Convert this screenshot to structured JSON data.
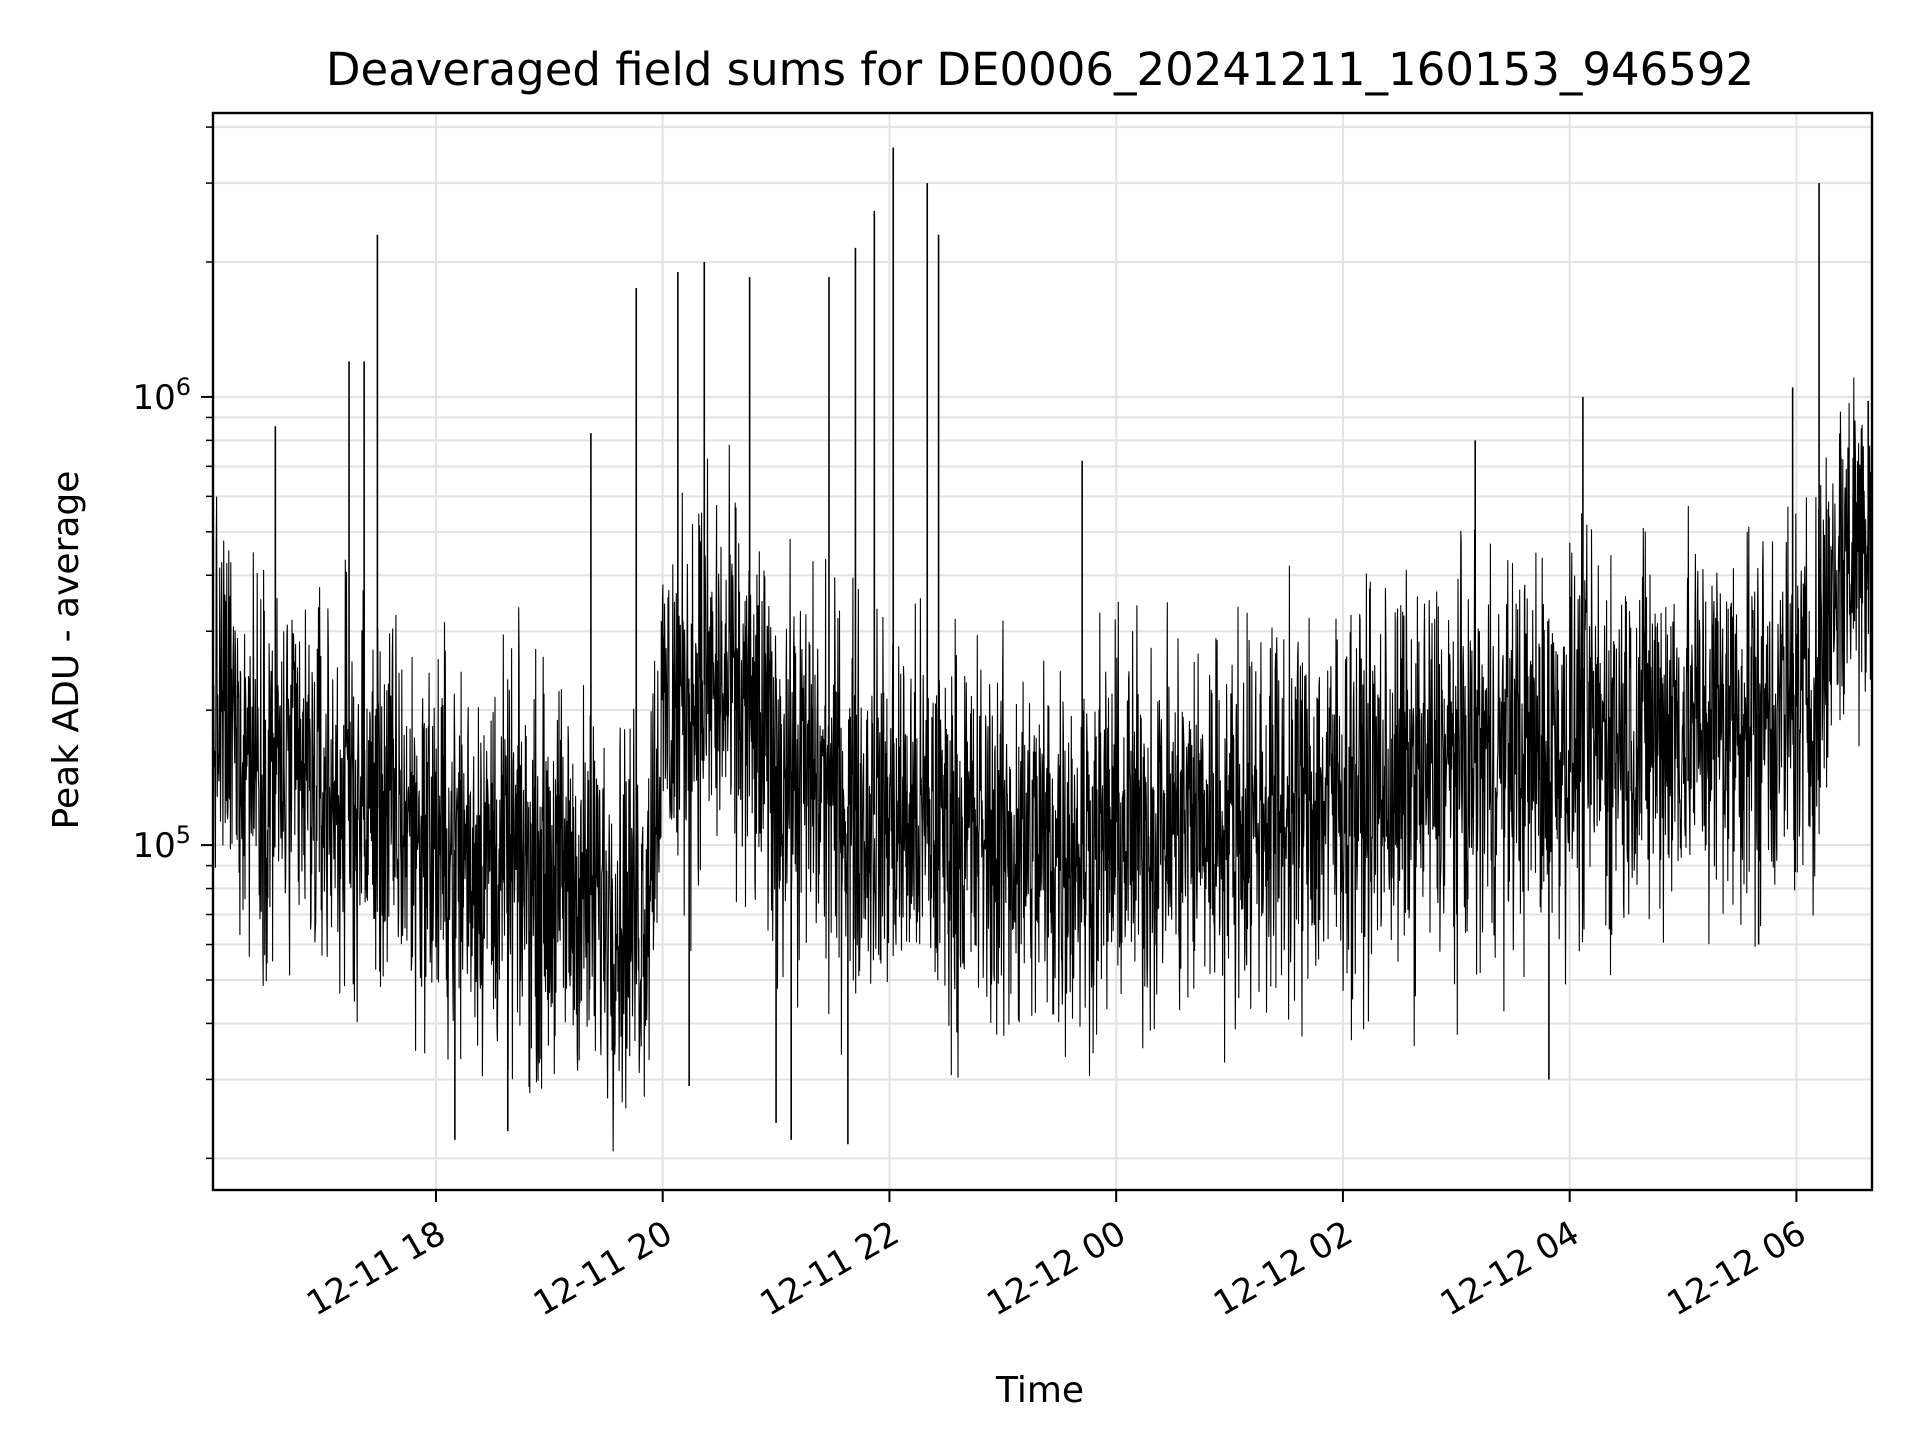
{
  "chart_data": {
    "type": "line",
    "title": "Deaveraged field sums for DE0006_20241211_160153_946592",
    "xlabel": "Time",
    "ylabel": "Peak ADU - average",
    "yscale": "log",
    "ylim": [
      17000,
      4300000
    ],
    "xlim": [
      "2024-12-11 16:02",
      "2024-12-12 06:40"
    ],
    "grid": true,
    "line_color": "#000000",
    "x_ticks": [
      {
        "t": "2024-12-11 18:00",
        "label": "12-11 18"
      },
      {
        "t": "2024-12-11 20:00",
        "label": "12-11 20"
      },
      {
        "t": "2024-12-11 22:00",
        "label": "12-11 22"
      },
      {
        "t": "2024-12-12 00:00",
        "label": "12-12 00"
      },
      {
        "t": "2024-12-12 02:00",
        "label": "12-12 02"
      },
      {
        "t": "2024-12-12 04:00",
        "label": "12-12 04"
      },
      {
        "t": "2024-12-12 06:00",
        "label": "12-12 06"
      }
    ],
    "y_major_ticks": [
      {
        "value": 100000,
        "base": "10",
        "exp": "5"
      },
      {
        "value": 1000000,
        "base": "10",
        "exp": "6"
      }
    ],
    "series": [
      {
        "x": [
          "2024-12-11 16:02",
          "2024-12-11 16:20",
          "2024-12-11 16:40",
          "2024-12-11 17:00",
          "2024-12-11 17:20",
          "2024-12-11 17:40",
          "2024-12-11 18:00",
          "2024-12-11 18:20",
          "2024-12-11 18:40",
          "2024-12-11 19:00",
          "2024-12-11 19:20",
          "2024-12-11 19:40",
          "2024-12-11 19:50",
          "2024-12-11 20:00",
          "2024-12-11 20:20",
          "2024-12-11 20:40",
          "2024-12-11 21:00",
          "2024-12-11 21:20",
          "2024-12-11 21:40",
          "2024-12-11 22:00",
          "2024-12-11 22:20",
          "2024-12-11 22:40",
          "2024-12-11 23:00",
          "2024-12-11 23:20",
          "2024-12-11 23:40",
          "2024-12-12 00:00",
          "2024-12-12 00:20",
          "2024-12-12 00:40",
          "2024-12-12 01:00",
          "2024-12-12 01:20",
          "2024-12-12 01:40",
          "2024-12-12 02:00",
          "2024-12-12 02:20",
          "2024-12-12 02:40",
          "2024-12-12 03:00",
          "2024-12-12 03:20",
          "2024-12-12 03:40",
          "2024-12-12 04:00",
          "2024-12-12 04:20",
          "2024-12-12 04:40",
          "2024-12-12 05:00",
          "2024-12-12 05:20",
          "2024-12-12 05:40",
          "2024-12-12 06:00",
          "2024-12-12 06:10",
          "2024-12-12 06:20",
          "2024-12-12 06:40"
        ],
        "y": [
          200000,
          170000,
          140000,
          130000,
          125000,
          115000,
          100000,
          95000,
          90000,
          85000,
          78000,
          72000,
          70000,
          190000,
          230000,
          210000,
          150000,
          140000,
          120000,
          115000,
          110000,
          105000,
          100000,
          98000,
          100000,
          105000,
          110000,
          112000,
          115000,
          118000,
          122000,
          128000,
          135000,
          140000,
          150000,
          155000,
          160000,
          170000,
          175000,
          180000,
          185000,
          190000,
          195000,
          200000,
          220000,
          400000,
          550000
        ]
      }
    ],
    "spikes": [
      {
        "t": "2024-12-11 16:35",
        "y": 860000
      },
      {
        "t": "2024-12-11 17:14",
        "y": 1200000
      },
      {
        "t": "2024-12-11 17:22",
        "y": 1200000
      },
      {
        "t": "2024-12-11 17:29",
        "y": 2300000
      },
      {
        "t": "2024-12-11 18:10",
        "y": 22000
      },
      {
        "t": "2024-12-11 18:38",
        "y": 23000
      },
      {
        "t": "2024-12-11 19:22",
        "y": 830000
      },
      {
        "t": "2024-12-11 19:46",
        "y": 1750000
      },
      {
        "t": "2024-12-11 20:08",
        "y": 1900000
      },
      {
        "t": "2024-12-11 20:14",
        "y": 29000
      },
      {
        "t": "2024-12-11 20:22",
        "y": 2000000
      },
      {
        "t": "2024-12-11 20:46",
        "y": 1850000
      },
      {
        "t": "2024-12-11 21:00",
        "y": 24000
      },
      {
        "t": "2024-12-11 21:08",
        "y": 22000
      },
      {
        "t": "2024-12-11 21:28",
        "y": 1850000
      },
      {
        "t": "2024-12-11 21:38",
        "y": 21500
      },
      {
        "t": "2024-12-11 21:42",
        "y": 2150000
      },
      {
        "t": "2024-12-11 21:52",
        "y": 2600000
      },
      {
        "t": "2024-12-11 22:02",
        "y": 3600000
      },
      {
        "t": "2024-12-11 22:20",
        "y": 3000000
      },
      {
        "t": "2024-12-11 22:26",
        "y": 2300000
      },
      {
        "t": "2024-12-11 23:42",
        "y": 720000
      },
      {
        "t": "2024-12-12 03:10",
        "y": 800000
      },
      {
        "t": "2024-12-12 03:49",
        "y": 30000
      },
      {
        "t": "2024-12-12 04:07",
        "y": 1000000
      },
      {
        "t": "2024-12-12 05:40",
        "y": 60000
      },
      {
        "t": "2024-12-12 05:58",
        "y": 1050000
      },
      {
        "t": "2024-12-12 06:12",
        "y": 3000000
      },
      {
        "t": "2024-12-12 06:38",
        "y": 980000
      }
    ]
  }
}
